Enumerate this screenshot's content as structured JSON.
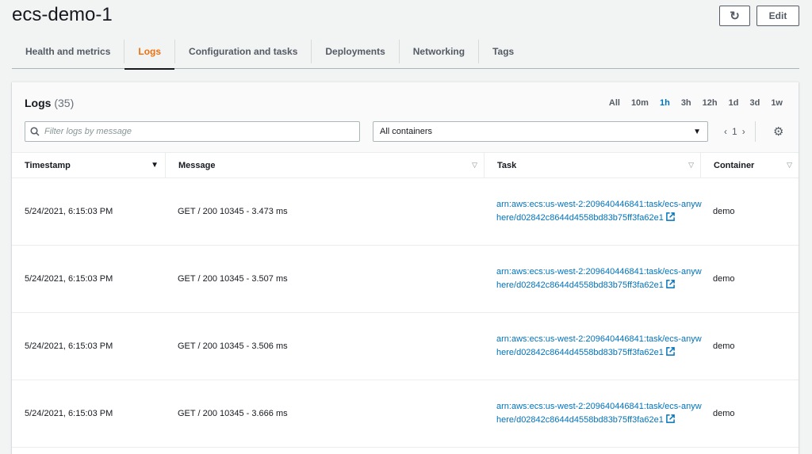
{
  "header": {
    "title": "ecs-demo-1",
    "refresh_icon": "refresh-icon",
    "edit_label": "Edit"
  },
  "tabs": [
    {
      "label": "Health and metrics"
    },
    {
      "label": "Logs",
      "active": true
    },
    {
      "label": "Configuration and tasks"
    },
    {
      "label": "Deployments"
    },
    {
      "label": "Networking"
    },
    {
      "label": "Tags"
    }
  ],
  "logs": {
    "title": "Logs",
    "count": "(35)",
    "ranges": [
      "All",
      "10m",
      "1h",
      "3h",
      "12h",
      "1d",
      "3d",
      "1w"
    ],
    "active_range": "1h",
    "search_placeholder": "Filter logs by message",
    "container_select": "All containers",
    "page": "1",
    "columns": [
      "Timestamp",
      "Message",
      "Task",
      "Container"
    ],
    "rows": [
      {
        "timestamp": "5/24/2021, 6:15:03 PM",
        "message": "GET / 200 10345 - 3.473 ms",
        "task": "arn:aws:ecs:us-west-2:209640446841:task/ecs-anywhere/d02842c8644d4558bd83b75ff3fa62e1",
        "container": "demo"
      },
      {
        "timestamp": "5/24/2021, 6:15:03 PM",
        "message": "GET / 200 10345 - 3.507 ms",
        "task": "arn:aws:ecs:us-west-2:209640446841:task/ecs-anywhere/d02842c8644d4558bd83b75ff3fa62e1",
        "container": "demo"
      },
      {
        "timestamp": "5/24/2021, 6:15:03 PM",
        "message": "GET / 200 10345 - 3.506 ms",
        "task": "arn:aws:ecs:us-west-2:209640446841:task/ecs-anywhere/d02842c8644d4558bd83b75ff3fa62e1",
        "container": "demo"
      },
      {
        "timestamp": "5/24/2021, 6:15:03 PM",
        "message": "GET / 200 10345 - 3.666 ms",
        "task": "arn:aws:ecs:us-west-2:209640446841:task/ecs-anywhere/d02842c8644d4558bd83b75ff3fa62e1",
        "container": "demo"
      }
    ]
  },
  "colors": {
    "active_tab": "#ec7211",
    "link": "#0073bb"
  }
}
